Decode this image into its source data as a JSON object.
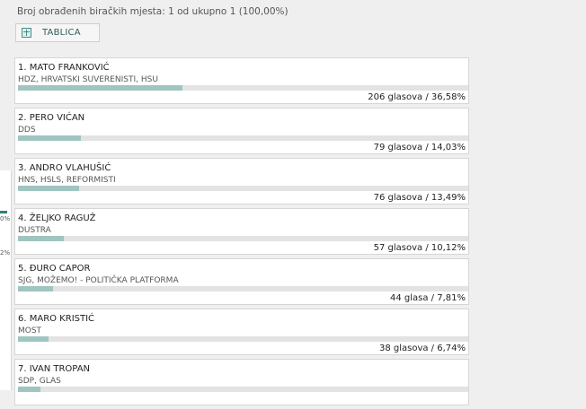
{
  "status": {
    "text": "Broj obrađenih biračkih mjesta: 1 od ukupno 1 (100,00%)"
  },
  "tab": {
    "label": "TABLICA",
    "icon": "table-icon"
  },
  "left_edge": {
    "fragment_1": "0%",
    "fragment_2": "2%"
  },
  "colors": {
    "bar_fill": "#9fc5c1",
    "bar_track": "#e3e3e3",
    "accent": "#2f7f7a"
  },
  "candidates": [
    {
      "name": "1. MATO FRANKOVIĆ",
      "party": "HDZ, HRVATSKI SUVERENISTI, HSU",
      "result": "206 glasova / 36,58%",
      "percent": 36.58
    },
    {
      "name": "2. PERO VIĆAN",
      "party": "DDS",
      "result": "79 glasova / 14,03%",
      "percent": 14.03
    },
    {
      "name": "3. ANDRO VLAHUŠIĆ",
      "party": "HNS, HSLS, REFORMISTI",
      "result": "76 glasova / 13,49%",
      "percent": 13.49
    },
    {
      "name": "4. ŽELJKO RAGUŽ",
      "party": "DUSTRA",
      "result": "57 glasova / 10,12%",
      "percent": 10.12
    },
    {
      "name": "5. ĐURO CAPOR",
      "party": "SJG, MOŽEMO! - POLITIČKA PLATFORMA",
      "result": "44 glasa / 7,81%",
      "percent": 7.81
    },
    {
      "name": "6. MARO KRISTIĆ",
      "party": "MOST",
      "result": "38 glasova / 6,74%",
      "percent": 6.74
    },
    {
      "name": "7. IVAN TROPAN",
      "party": "SDP, GLAS",
      "result": "",
      "percent": 5.0
    }
  ]
}
